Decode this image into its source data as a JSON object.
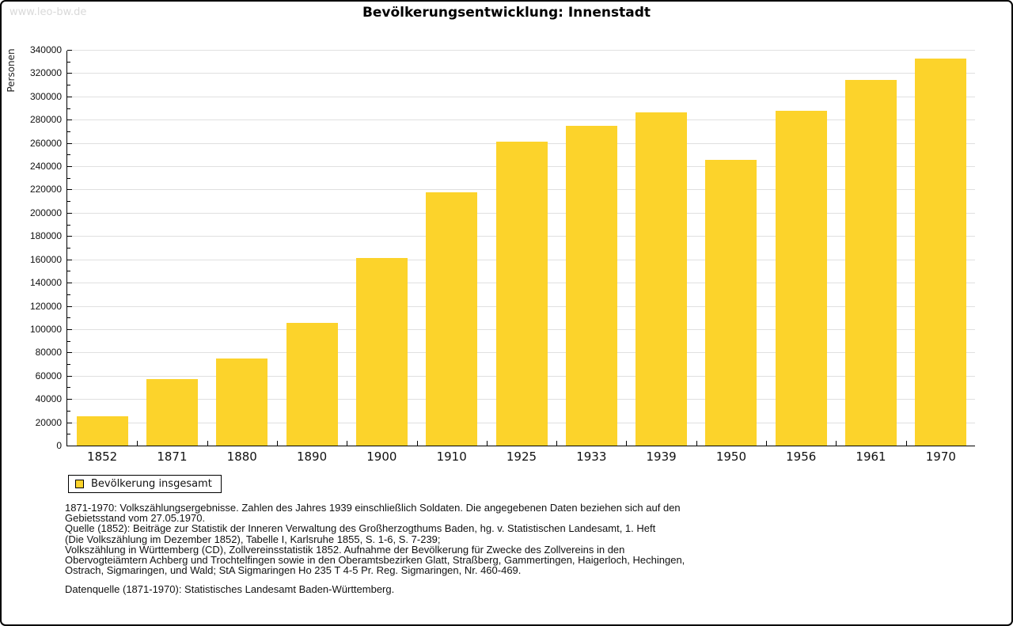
{
  "page": {
    "watermark": "www.leo-bw.de"
  },
  "chart_data": {
    "type": "bar",
    "title": "Bevölkerungsentwicklung: Innenstadt",
    "ylabel": "Personen",
    "xlabel": "",
    "categories": [
      "1852",
      "1871",
      "1880",
      "1890",
      "1900",
      "1910",
      "1925",
      "1933",
      "1939",
      "1950",
      "1956",
      "1961",
      "1970"
    ],
    "values": [
      25000,
      57000,
      74500,
      105500,
      161000,
      217500,
      261000,
      275000,
      286000,
      245500,
      287500,
      314500,
      332500
    ],
    "series_name": "Bevölkerung insgesamt",
    "ylim": [
      0,
      340000
    ],
    "ytick_major_step": 20000,
    "ytick_minor_step": 10000,
    "grid": true,
    "legend_position": "bottom-left",
    "bar_color": "#fcd32b",
    "gridline_color": "#e0e0e0"
  },
  "legend": {
    "label": "Bevölkerung insgesamt"
  },
  "footer": {
    "lines": [
      "1871-1970: Volkszählungsergebnisse. Zahlen des Jahres 1939 einschließlich Soldaten. Die angegebenen Daten beziehen sich auf den",
      "Gebietsstand vom 27.05.1970.",
      "Quelle (1852): Beiträge zur Statistik der Inneren Verwaltung des Großherzogthums Baden, hg. v. Statistischen Landesamt, 1. Heft",
      "(Die Volkszählung im Dezember 1852), Tabelle I, Karlsruhe 1855, S. 1-6, S. 7-239;",
      "Volkszählung in Württemberg (CD), Zollvereinsstatistik 1852. Aufnahme der Bevölkerung für Zwecke des Zollvereins in den",
      "Obervogteiämtern Achberg und Trochtelfingen sowie in den Oberamtsbezirken Glatt, Straßberg, Gammertingen, Haigerloch, Hechingen,",
      "Ostrach, Sigmaringen, und Wald; StA Sigmaringen Ho 235 T 4-5 Pr. Reg. Sigmaringen, Nr. 460-469."
    ],
    "source": "Datenquelle (1871-1970): Statistisches Landesamt Baden-Württemberg."
  }
}
